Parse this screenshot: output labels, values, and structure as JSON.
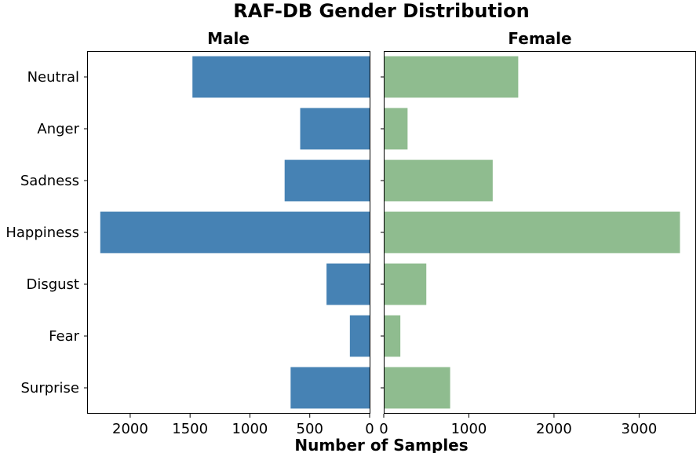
{
  "chart_data": {
    "type": "bar",
    "orientation": "horizontal",
    "title": "RAF-DB Gender Distribution",
    "xlabel": "Number of Samples",
    "categories": [
      "Neutral",
      "Anger",
      "Sadness",
      "Happiness",
      "Disgust",
      "Fear",
      "Surprise"
    ],
    "panels": [
      {
        "name": "Male",
        "color": "#4682b4",
        "values": [
          1480,
          580,
          710,
          2250,
          360,
          165,
          660
        ],
        "xlim": [
          2360,
          0
        ],
        "xticks": [
          2000,
          1500,
          1000,
          500,
          0
        ],
        "x_reversed": true
      },
      {
        "name": "Female",
        "color": "#8fbc8f",
        "values": [
          1580,
          280,
          1280,
          3480,
          500,
          195,
          780
        ],
        "xlim": [
          0,
          3660
        ],
        "xticks": [
          0,
          1000,
          2000,
          3000
        ],
        "x_reversed": false
      }
    ]
  }
}
